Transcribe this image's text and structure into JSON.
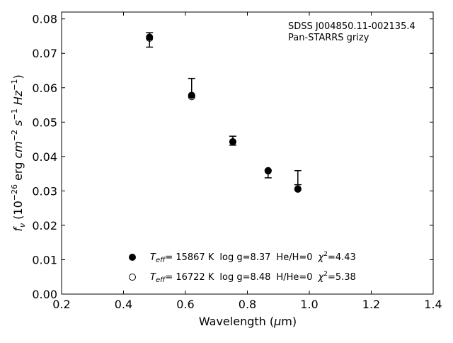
{
  "chart_data": {
    "type": "scatter",
    "annotation": [
      "SDSS J004850.11-002135.4",
      "Pan-STARRS grizy"
    ],
    "xlabel": {
      "main": "Wavelength (",
      "mu": "μ",
      "unit": "m)"
    },
    "ylabel": {
      "f": "f",
      "nu": "ν",
      "a": " (10",
      "exp26": "−26",
      "b": " erg ",
      "cm": "cm",
      "exp2": "−2",
      "c": " ",
      "s": "s",
      "exp1a": "−1",
      "d": " ",
      "hz": "Hz",
      "exp1b": "−1",
      "e": ")"
    },
    "xlim": [
      0.2,
      1.4
    ],
    "ylim": [
      0.0,
      0.082
    ],
    "xticks": [
      "0.2",
      "0.4",
      "0.6",
      "0.8",
      "1.0",
      "1.2",
      "1.4"
    ],
    "yticks": [
      "0.00",
      "0.01",
      "0.02",
      "0.03",
      "0.04",
      "0.05",
      "0.06",
      "0.07",
      "0.08"
    ],
    "observed": [
      {
        "x": 0.484,
        "y": 0.074,
        "err_up": 0.002,
        "err_down": 0.0022
      },
      {
        "x": 0.62,
        "y": 0.0577,
        "err_up": 0.005,
        "err_down": 0.0
      },
      {
        "x": 0.753,
        "y": 0.0446,
        "err_up": 0.0013,
        "err_down": 0.0013
      },
      {
        "x": 0.867,
        "y": 0.0355,
        "err_up": 0.0005,
        "err_down": 0.0017
      },
      {
        "x": 0.963,
        "y": 0.0318,
        "err_up": 0.0041,
        "err_down": 0.0
      }
    ],
    "series": [
      {
        "marker": "filled-circle",
        "values": [
          {
            "x": 0.484,
            "y": 0.0747
          },
          {
            "x": 0.62,
            "y": 0.0578
          },
          {
            "x": 0.753,
            "y": 0.0443
          },
          {
            "x": 0.867,
            "y": 0.0358
          },
          {
            "x": 0.963,
            "y": 0.0305
          }
        ]
      },
      {
        "marker": "open-circle",
        "values": [
          {
            "x": 0.484,
            "y": 0.0744
          },
          {
            "x": 0.62,
            "y": 0.0574
          },
          {
            "x": 0.753,
            "y": 0.0443
          },
          {
            "x": 0.867,
            "y": 0.0359
          },
          {
            "x": 0.963,
            "y": 0.0306
          }
        ]
      }
    ],
    "legend": [
      {
        "marker": "filled-circle",
        "t": "T",
        "eff": "eff",
        "teff": "= 15867 K",
        "logg": "log g=8.37",
        "comp": "He/H=0",
        "chi": "χ",
        "chi_exp": "2",
        "chi_val": "=4.43"
      },
      {
        "marker": "open-circle",
        "t": "T",
        "eff": "eff",
        "teff": "= 16722 K",
        "logg": "log g=8.48",
        "comp": "H/He=0",
        "chi": "χ",
        "chi_exp": "2",
        "chi_val": "=5.38"
      }
    ],
    "legend_position": "lower-center",
    "grid": false
  }
}
